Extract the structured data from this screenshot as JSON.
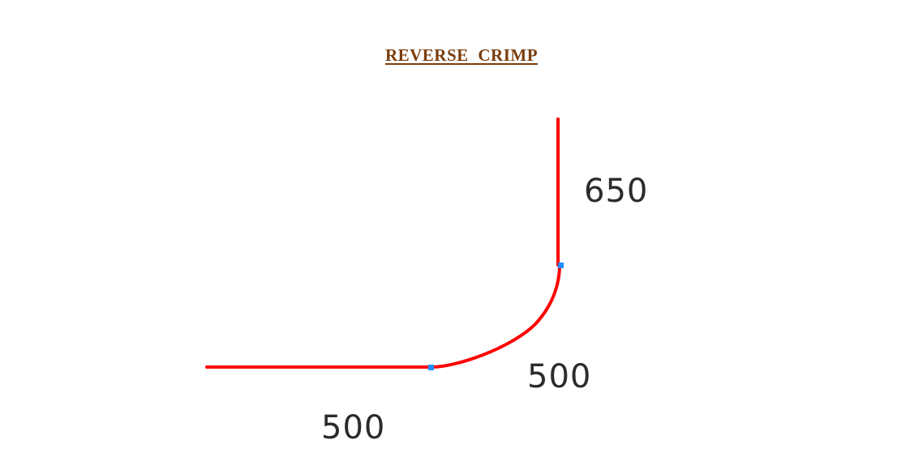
{
  "title": "REVERSE  CRIMP",
  "colors": {
    "title": "#7a3d0c",
    "profile_line": "#ff0000",
    "node_marker": "#1e90ff",
    "dimension_text": "#2b2b2b",
    "background": "#ffffff"
  },
  "dimensions": {
    "vertical_leg": "650",
    "crimp_arc": "500",
    "horizontal_leg": "500"
  }
}
